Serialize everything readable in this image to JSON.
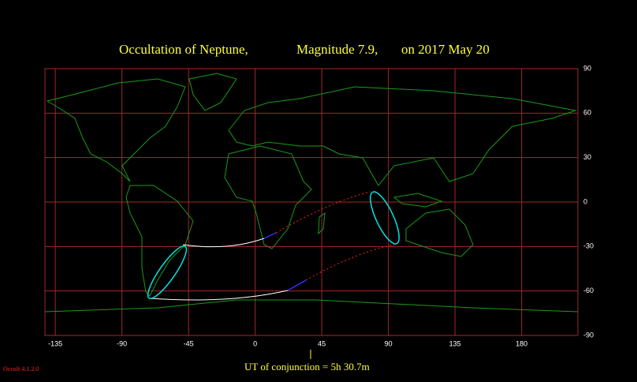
{
  "title_parts": [
    "Occultation  of  Neptune,",
    "Magnitude 7.9,",
    "on  2017 May 20"
  ],
  "map": {
    "xlim": [
      -142,
      218
    ],
    "ylim": [
      -90,
      90
    ],
    "xticks": [
      -135,
      -90,
      -45,
      0,
      45,
      90,
      135,
      180
    ],
    "yticks": [
      90,
      60,
      30,
      0,
      -30,
      -60,
      -90
    ]
  },
  "footer": "UT of conjunction =  5h 30.7m",
  "version": "Occult 4.1.2.0"
}
